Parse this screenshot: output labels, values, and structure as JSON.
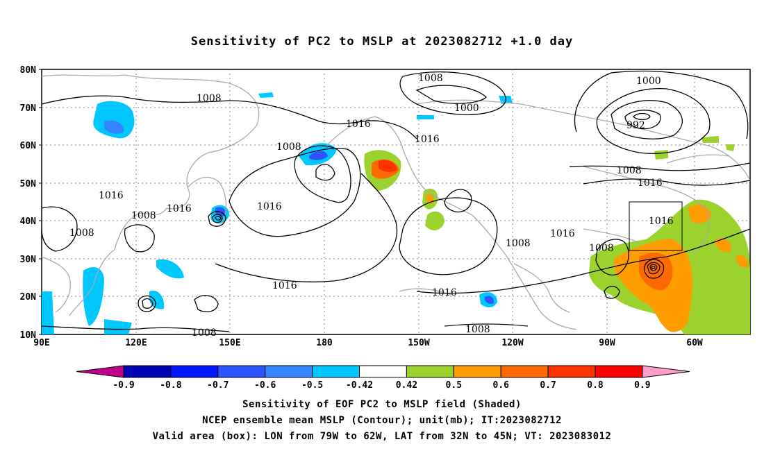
{
  "title": "Sensitivity of PC2 to MSLP at 2023082712 +1.0 day",
  "lat_ticks": [
    "80N",
    "70N",
    "60N",
    "50N",
    "40N",
    "30N",
    "20N",
    "10N"
  ],
  "lon_ticks": [
    "90E",
    "120E",
    "150E",
    "180",
    "150W",
    "120W",
    "90W",
    "60W"
  ],
  "contour_labels": [
    "1008",
    "1008",
    "1000",
    "1000",
    "992",
    "1016",
    "1016",
    "1008",
    "1016",
    "1016",
    "1016",
    "1008",
    "1008",
    "1016",
    "1016",
    "1008",
    "1016",
    "1008",
    "1008",
    "1016",
    "1008"
  ],
  "colorbar": {
    "labels": [
      "-0.9",
      "-0.8",
      "-0.7",
      "-0.6",
      "-0.5",
      "-0.42",
      "0.42",
      "0.5",
      "0.6",
      "0.7",
      "0.8",
      "0.9"
    ],
    "colors": [
      "#c0008c",
      "#0000b4",
      "#0019ff",
      "#2a55ff",
      "#3385ff",
      "#00c8ff",
      "#ffffff",
      "#9bd22d",
      "#ff9c00",
      "#ff6a00",
      "#ff3200",
      "#ff0000",
      "#ff9ec8"
    ]
  },
  "captions": {
    "line1": "Sensitivity of EOF PC2 to MSLP field (Shaded)",
    "line2": "NCEP ensemble mean MSLP (Contour); unit(mb); IT:2023082712",
    "line3": "Valid area (box): LON from 79W to 62W, LAT from 32N to 45N; VT: 2023083012"
  }
}
